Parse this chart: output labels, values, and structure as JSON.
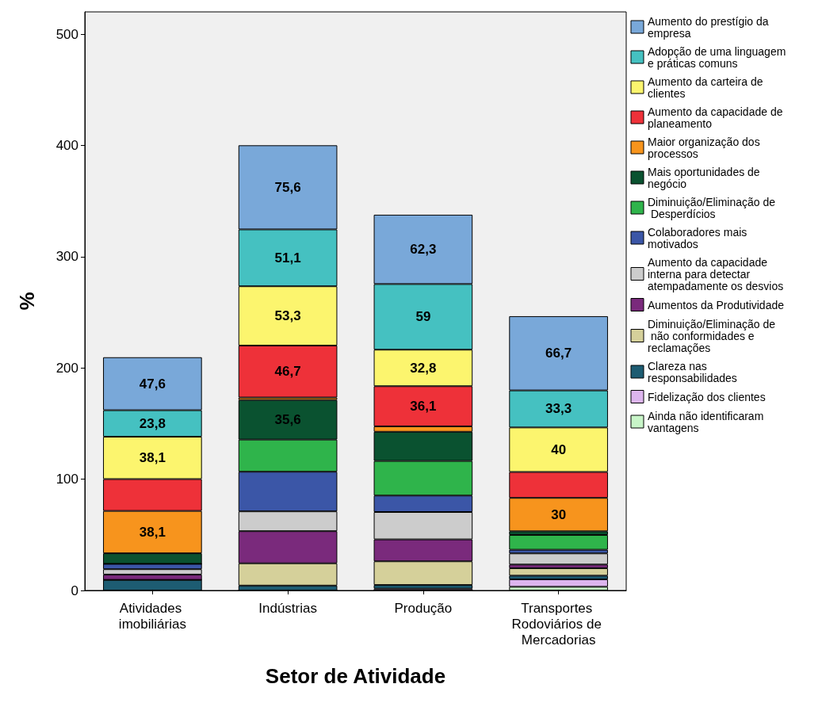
{
  "chart_data": {
    "type": "bar",
    "stacked": true,
    "xlabel": "Setor de Atividade",
    "ylabel": "%",
    "categories": [
      "Atividades imobiliárias",
      "Indústrias",
      "Produção",
      "Transportes Rodoviários de Mercadorias"
    ],
    "ylim": [
      0,
      520
    ],
    "yticks": [
      0,
      100,
      200,
      300,
      400,
      500
    ],
    "grid": false,
    "legend": "right",
    "series": [
      {
        "name": "Ainda não identificaram vantagens",
        "color": "#c8f5c8",
        "values": [
          0,
          0,
          0,
          3.3
        ]
      },
      {
        "name": "Fidelização dos clientes",
        "color": "#ddb5ee",
        "values": [
          0,
          0,
          1.6,
          6.7
        ]
      },
      {
        "name": "Clareza nas responsabilidades",
        "color": "#1d5c72",
        "values": [
          9.5,
          4.4,
          3.3,
          3.3
        ]
      },
      {
        "name": "Diminuição/Eliminação de não conformidades e reclamações",
        "color": "#d5d09a",
        "values": [
          0,
          20,
          21.3,
          6.7
        ]
      },
      {
        "name": "Aumentos da Produtividade",
        "color": "#7a2a7c",
        "values": [
          4.8,
          28.9,
          19.7,
          3.3
        ]
      },
      {
        "name": "Aumento da capacidade interna para detectar atempadamente os desvios",
        "color": "#cccccc",
        "values": [
          4.8,
          17.8,
          24.6,
          10
        ]
      },
      {
        "name": "Colaboradores mais motivados",
        "color": "#3b56a7",
        "values": [
          4.8,
          35.6,
          14.8,
          3.3
        ]
      },
      {
        "name": "Diminuição/Eliminação de Desperdícios",
        "color": "#2fb44b",
        "values": [
          0,
          28.9,
          31.1,
          13.3
        ]
      },
      {
        "name": "Mais oportunidades de negócio",
        "color": "#0a5230",
        "values": [
          9.5,
          35.6,
          26.2,
          3.3
        ],
        "value_labels": [
          null,
          "35,6",
          null,
          null
        ]
      },
      {
        "name": "Maior organização dos processos",
        "color": "#f7941d",
        "values": [
          38.1,
          2.2,
          4.9,
          30
        ],
        "value_labels": [
          "38,1",
          null,
          null,
          "30"
        ]
      },
      {
        "name": "Aumento da capacidade de planeamento",
        "color": "#ee3139",
        "values": [
          28.6,
          46.7,
          36.1,
          23.3
        ],
        "value_labels": [
          null,
          "46,7",
          "36,1",
          null
        ]
      },
      {
        "name": "Aumento da carteira de clientes",
        "color": "#fcf56e",
        "values": [
          38.1,
          53.3,
          32.8,
          40
        ],
        "value_labels": [
          "38,1",
          "53,3",
          "32,8",
          "40"
        ]
      },
      {
        "name": "Adopção de uma linguagem e práticas comuns",
        "color": "#45c1c1",
        "values": [
          23.8,
          51.1,
          59,
          33.3
        ],
        "value_labels": [
          "23,8",
          "51,1",
          "59",
          "33,3"
        ]
      },
      {
        "name": "Aumento do prestígio da empresa",
        "color": "#79a8d9",
        "values": [
          47.6,
          75.6,
          62.3,
          66.7
        ],
        "value_labels": [
          "47,6",
          "75,6",
          "62,3",
          "66,7"
        ]
      }
    ]
  }
}
